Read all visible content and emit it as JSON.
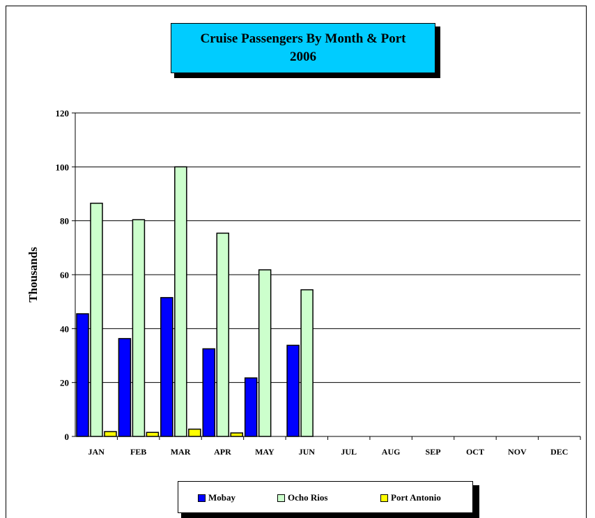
{
  "chart_data": {
    "type": "bar",
    "title_line1": "Cruise Passengers By Month & Port",
    "title_line2": "2006",
    "ylabel": "Thousands",
    "xlabel": "",
    "ylim": [
      0,
      120
    ],
    "yticks": [
      0,
      20,
      40,
      60,
      80,
      100,
      120
    ],
    "grid": true,
    "legend_position": "bottom",
    "categories": [
      "JAN",
      "FEB",
      "MAR",
      "APR",
      "MAY",
      "JUN",
      "JUL",
      "AUG",
      "SEP",
      "OCT",
      "NOV",
      "DEC"
    ],
    "series": [
      {
        "name": "Mobay",
        "color": "#0000ff",
        "values": [
          45.5,
          36.3,
          51.5,
          32.5,
          21.7,
          33.8,
          null,
          null,
          null,
          null,
          null,
          null
        ]
      },
      {
        "name": "Ocho Rios",
        "color": "#ccffcc",
        "values": [
          86.5,
          80.4,
          100.0,
          75.4,
          61.8,
          54.4,
          null,
          null,
          null,
          null,
          null,
          null
        ]
      },
      {
        "name": "Port Antonio",
        "color": "#ffff00",
        "values": [
          1.8,
          1.5,
          2.7,
          1.3,
          null,
          null,
          null,
          null,
          null,
          null,
          null,
          null
        ]
      }
    ]
  }
}
